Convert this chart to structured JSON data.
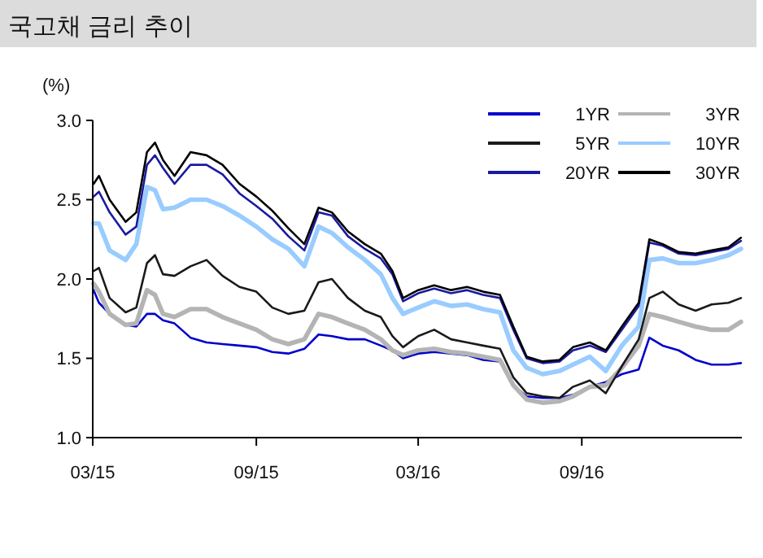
{
  "chart_data": {
    "type": "line",
    "title": "국고채 금리 추이",
    "ylabel": "(%)",
    "x": [
      "2015-03-02",
      "2015-03-08",
      "2015-03-20",
      "2015-04-07",
      "2015-04-19",
      "2015-05-01",
      "2015-05-10",
      "2015-05-19",
      "2015-06-01",
      "2015-06-19",
      "2015-07-07",
      "2015-07-25",
      "2015-08-13",
      "2015-09-01",
      "2015-09-19",
      "2015-10-07",
      "2015-10-25",
      "2015-11-10",
      "2015-11-25",
      "2015-12-13",
      "2016-01-01",
      "2016-01-19",
      "2016-02-01",
      "2016-02-13",
      "2016-03-01",
      "2016-03-19",
      "2016-04-07",
      "2016-04-25",
      "2016-05-13",
      "2016-06-01",
      "2016-06-16",
      "2016-07-01",
      "2016-07-19",
      "2016-08-07",
      "2016-08-22",
      "2016-09-10",
      "2016-09-28",
      "2016-10-16",
      "2016-11-04",
      "2016-11-16",
      "2016-12-01",
      "2016-12-19",
      "2017-01-07",
      "2017-01-25",
      "2017-02-13",
      "2017-02-27"
    ],
    "series": [
      {
        "name": "1YR",
        "color": "#0000cc",
        "values": [
          1.93,
          1.85,
          1.78,
          1.71,
          1.7,
          1.78,
          1.78,
          1.74,
          1.72,
          1.63,
          1.6,
          1.59,
          1.58,
          1.57,
          1.54,
          1.53,
          1.56,
          1.65,
          1.64,
          1.62,
          1.62,
          1.58,
          1.55,
          1.5,
          1.53,
          1.54,
          1.53,
          1.52,
          1.49,
          1.48,
          1.33,
          1.26,
          1.25,
          1.25,
          1.27,
          1.32,
          1.35,
          1.4,
          1.43,
          1.63,
          1.58,
          1.55,
          1.49,
          1.46,
          1.46,
          1.47
        ]
      },
      {
        "name": "3YR",
        "color": "#b4b4b4",
        "values": [
          1.97,
          1.92,
          1.78,
          1.71,
          1.72,
          1.93,
          1.9,
          1.78,
          1.76,
          1.81,
          1.81,
          1.76,
          1.72,
          1.68,
          1.62,
          1.59,
          1.62,
          1.78,
          1.76,
          1.72,
          1.68,
          1.62,
          1.55,
          1.52,
          1.55,
          1.56,
          1.54,
          1.53,
          1.51,
          1.49,
          1.33,
          1.24,
          1.22,
          1.23,
          1.26,
          1.32,
          1.33,
          1.44,
          1.58,
          1.78,
          1.76,
          1.73,
          1.7,
          1.68,
          1.68,
          1.73
        ]
      },
      {
        "name": "5YR",
        "color": "#1a1a1a",
        "values": [
          2.05,
          2.07,
          1.88,
          1.79,
          1.82,
          2.1,
          2.15,
          2.03,
          2.02,
          2.08,
          2.12,
          2.02,
          1.95,
          1.92,
          1.82,
          1.78,
          1.8,
          1.98,
          2.0,
          1.88,
          1.8,
          1.76,
          1.64,
          1.57,
          1.64,
          1.68,
          1.62,
          1.6,
          1.58,
          1.56,
          1.38,
          1.28,
          1.26,
          1.25,
          1.32,
          1.36,
          1.28,
          1.45,
          1.62,
          1.88,
          1.92,
          1.84,
          1.8,
          1.84,
          1.85,
          1.88
        ]
      },
      {
        "name": "10YR",
        "color": "#99ccff",
        "values": [
          2.35,
          2.35,
          2.18,
          2.12,
          2.22,
          2.58,
          2.56,
          2.44,
          2.45,
          2.5,
          2.5,
          2.46,
          2.4,
          2.33,
          2.25,
          2.19,
          2.08,
          2.33,
          2.29,
          2.2,
          2.12,
          2.03,
          1.88,
          1.78,
          1.82,
          1.86,
          1.83,
          1.84,
          1.81,
          1.79,
          1.55,
          1.44,
          1.4,
          1.42,
          1.46,
          1.51,
          1.42,
          1.58,
          1.7,
          2.12,
          2.13,
          2.1,
          2.1,
          2.12,
          2.15,
          2.19
        ]
      },
      {
        "name": "20YR",
        "color": "#1a1aa0",
        "values": [
          2.52,
          2.55,
          2.42,
          2.28,
          2.33,
          2.72,
          2.78,
          2.7,
          2.6,
          2.72,
          2.72,
          2.66,
          2.54,
          2.46,
          2.38,
          2.27,
          2.18,
          2.42,
          2.4,
          2.27,
          2.19,
          2.13,
          2.03,
          1.86,
          1.91,
          1.94,
          1.91,
          1.93,
          1.9,
          1.88,
          1.68,
          1.5,
          1.47,
          1.48,
          1.55,
          1.58,
          1.54,
          1.68,
          1.83,
          2.23,
          2.21,
          2.16,
          2.15,
          2.17,
          2.19,
          2.24
        ]
      },
      {
        "name": "30YR",
        "color": "#000000",
        "values": [
          2.6,
          2.65,
          2.5,
          2.36,
          2.42,
          2.8,
          2.86,
          2.75,
          2.65,
          2.8,
          2.78,
          2.72,
          2.6,
          2.52,
          2.43,
          2.32,
          2.22,
          2.45,
          2.42,
          2.3,
          2.22,
          2.16,
          2.05,
          1.88,
          1.93,
          1.96,
          1.93,
          1.95,
          1.92,
          1.9,
          1.7,
          1.51,
          1.48,
          1.49,
          1.57,
          1.6,
          1.55,
          1.7,
          1.85,
          2.25,
          2.22,
          2.17,
          2.16,
          2.18,
          2.2,
          2.26
        ]
      }
    ],
    "xlim": [
      "2015-03-01",
      "2017-02-28"
    ],
    "xticks": [
      {
        "value": "2015-03-01",
        "label": "03/15"
      },
      {
        "value": "2015-09-01",
        "label": "09/15"
      },
      {
        "value": "2016-03-01",
        "label": "03/16"
      },
      {
        "value": "2016-09-01",
        "label": "09/16"
      }
    ],
    "ylim": [
      1,
      3
    ],
    "yticks": [
      {
        "value": 1,
        "label": "1.0"
      },
      {
        "value": 1.5,
        "label": "1.5"
      },
      {
        "value": 2,
        "label": "2.0"
      },
      {
        "value": 2.5,
        "label": "2.5"
      },
      {
        "value": 3,
        "label": "3.0"
      }
    ],
    "legend": "top right",
    "grid": false
  }
}
